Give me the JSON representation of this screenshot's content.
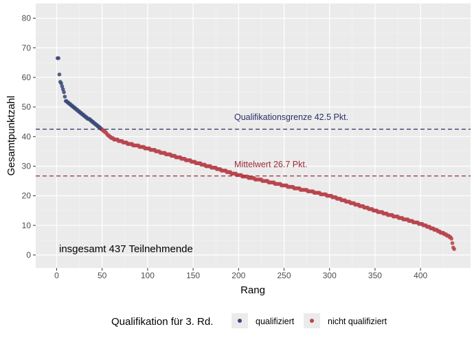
{
  "chart_data": {
    "type": "scatter",
    "xlabel": "Rang",
    "ylabel": "Gesamtpunktzahl",
    "xlim": [
      -23,
      455
    ],
    "ylim": [
      -4.4,
      85
    ],
    "x_ticks": [
      0,
      50,
      100,
      150,
      200,
      250,
      300,
      350,
      400
    ],
    "y_ticks": [
      0,
      10,
      20,
      30,
      40,
      50,
      60,
      70,
      80
    ],
    "grid": true,
    "legend_position": "bottom",
    "legend_title": "Qualifikation für 3. Rd.",
    "series": [
      {
        "name": "qualifiziert",
        "color": "#3b4a7a",
        "key": "qualified"
      },
      {
        "name": "nicht qualifiziert",
        "color": "#b8454f",
        "key": "not_qualified"
      }
    ],
    "total_participants": 437,
    "qualified_count": 49,
    "score_profile": [
      [
        1,
        66.5
      ],
      [
        2,
        66.5
      ],
      [
        3,
        61
      ],
      [
        4,
        58.5
      ],
      [
        6,
        57
      ],
      [
        8,
        55
      ],
      [
        10,
        52
      ],
      [
        20,
        49.5
      ],
      [
        30,
        47
      ],
      [
        40,
        45
      ],
      [
        45,
        43.5
      ],
      [
        50,
        42.5
      ],
      [
        60,
        39.5
      ],
      [
        80,
        37.5
      ],
      [
        100,
        36
      ],
      [
        150,
        31.5
      ],
      [
        200,
        27
      ],
      [
        250,
        23.5
      ],
      [
        300,
        20
      ],
      [
        350,
        15
      ],
      [
        400,
        10.5
      ],
      [
        420,
        8
      ],
      [
        430,
        6.5
      ],
      [
        434,
        5.5
      ],
      [
        436,
        2.5
      ],
      [
        437,
        2
      ]
    ],
    "reference_lines": [
      {
        "label": "Qualifikationsgrenze 42.5 Pkt.",
        "value": 42.5,
        "color": "#2b3068"
      },
      {
        "label": "Mittelwert 26.7 Pkt.",
        "value": 26.7,
        "color": "#9e2a35"
      }
    ],
    "annotation": "insgesamt 437 Teilnehmende"
  }
}
